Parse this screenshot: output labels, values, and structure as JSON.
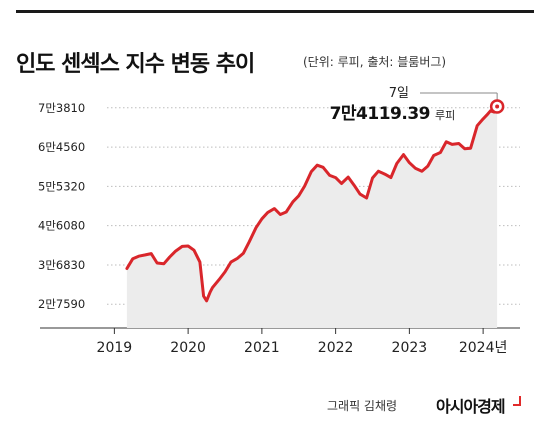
{
  "header": {
    "title": "인도 센섹스 지수 변동 추이",
    "subtitle": "(단위: 루피, 출처: 블룸버그)"
  },
  "colors": {
    "line": "#d9262b",
    "area": "#ececec",
    "grid": "#bdbdbd",
    "text": "#222222"
  },
  "annotation": {
    "date": "7일",
    "value": "7만4119.39",
    "unit": "루피"
  },
  "footer": {
    "credit": "그래픽 김채령",
    "brand": "아시아경제"
  },
  "chart_data": {
    "type": "area",
    "title": "인도 센섹스 지수 변동 추이",
    "units": "루피",
    "source": "블룸버그",
    "ylim": [
      22000,
      78000
    ],
    "xlim": [
      2018.9,
      2024.5
    ],
    "y_ticks": [
      {
        "value": 73810,
        "label": "7만3810"
      },
      {
        "value": 64560,
        "label": "6만4560"
      },
      {
        "value": 55320,
        "label": "5만5320"
      },
      {
        "value": 46080,
        "label": "4만6080"
      },
      {
        "value": 36830,
        "label": "3만6830"
      },
      {
        "value": 27590,
        "label": "2만7590"
      }
    ],
    "x_ticks": [
      {
        "value": 2019,
        "label": "2019"
      },
      {
        "value": 2020,
        "label": "2020"
      },
      {
        "value": 2021,
        "label": "2021"
      },
      {
        "value": 2022,
        "label": "2022"
      },
      {
        "value": 2023,
        "label": "2023"
      },
      {
        "value": 2024,
        "label": "2024년"
      }
    ],
    "grid": "horizontal dotted",
    "series": [
      {
        "x": [
          2019.17,
          2019.25,
          2019.33,
          2019.42,
          2019.5,
          2019.58,
          2019.67,
          2019.75,
          2019.83,
          2019.92,
          2020.0,
          2020.08,
          2020.16,
          2020.21,
          2020.25,
          2020.3,
          2020.33,
          2020.42,
          2020.5,
          2020.58,
          2020.67,
          2020.75,
          2020.83,
          2020.92,
          2021.0,
          2021.08,
          2021.17,
          2021.25,
          2021.33,
          2021.42,
          2021.5,
          2021.58,
          2021.67,
          2021.75,
          2021.83,
          2021.92,
          2022.0,
          2022.08,
          2022.17,
          2022.25,
          2022.33,
          2022.42,
          2022.5,
          2022.58,
          2022.67,
          2022.75,
          2022.83,
          2022.92,
          2023.0,
          2023.08,
          2023.17,
          2023.25,
          2023.33,
          2023.42,
          2023.5,
          2023.58,
          2023.67,
          2023.75,
          2023.83,
          2023.92,
          2024.0,
          2024.05,
          2024.1,
          2024.15,
          2024.19
        ],
        "y": [
          36000,
          38300,
          38900,
          39200,
          39500,
          37300,
          37100,
          38700,
          40100,
          41200,
          41300,
          40300,
          37500,
          29500,
          28400,
          30500,
          31500,
          33400,
          35200,
          37500,
          38400,
          39600,
          42300,
          45600,
          47700,
          49200,
          50100,
          48700,
          49300,
          51700,
          53100,
          55400,
          58800,
          60300,
          59800,
          57900,
          57400,
          56000,
          57500,
          55600,
          53500,
          52600,
          57300,
          58900,
          58200,
          57400,
          60700,
          62800,
          60900,
          59600,
          58900,
          60100,
          62600,
          63300,
          65800,
          65200,
          65400,
          64200,
          64300,
          69600,
          71200,
          72100,
          73100,
          72800,
          74119.39
        ]
      }
    ]
  }
}
